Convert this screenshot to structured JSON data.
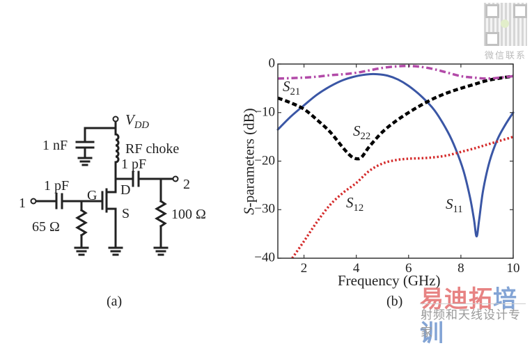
{
  "figure": {
    "panel_a_caption": "(a)",
    "panel_b_caption": "(b)"
  },
  "circuit": {
    "vdd_label": "V",
    "vdd_sub": "DD",
    "bypass_cap": "1 nF",
    "choke": "RF choke",
    "output_cap": "1 pF",
    "input_cap": "1 pF",
    "gate": "G",
    "drain": "D",
    "source": "S",
    "port1": "1",
    "port2": "2",
    "input_res": "65 Ω",
    "output_res": "100 Ω"
  },
  "chart_data": {
    "type": "line",
    "title": "",
    "xlabel": "Frequency (GHz)",
    "ylabel": "S-parameters (dB)",
    "xlim": [
      1,
      10
    ],
    "ylim": [
      -40,
      0
    ],
    "xticks": [
      2,
      4,
      6,
      8,
      10
    ],
    "yticks": [
      0,
      -10,
      -20,
      -30,
      -40
    ],
    "grid": false,
    "series": [
      {
        "name": "S11",
        "label_main": "S",
        "label_sub": "11",
        "color": "#3a56a5",
        "style": "solid",
        "x": [
          1,
          1.5,
          2,
          2.5,
          3,
          3.5,
          4,
          4.5,
          4.8,
          5.2,
          5.6,
          6,
          6.5,
          7,
          7.5,
          7.8,
          8.1,
          8.35,
          8.5,
          8.6,
          8.7,
          8.85,
          9.1,
          9.4,
          9.7,
          10
        ],
        "values": [
          -13.5,
          -10.8,
          -8.5,
          -6.3,
          -4.6,
          -3.3,
          -2.5,
          -2.1,
          -2.1,
          -2.4,
          -3.2,
          -4.5,
          -6.7,
          -9.6,
          -14,
          -17.5,
          -22,
          -27.5,
          -32,
          -35.5,
          -32,
          -26,
          -20,
          -15.5,
          -12.5,
          -10
        ]
      },
      {
        "name": "S22",
        "label_main": "S",
        "label_sub": "22",
        "color": "#000000",
        "style": "dashed",
        "x": [
          1,
          1.5,
          2,
          2.5,
          3,
          3.5,
          3.8,
          4,
          4.2,
          4.5,
          5,
          5.5,
          6,
          6.5,
          7,
          7.5,
          8,
          8.5,
          9,
          9.5,
          10
        ],
        "values": [
          -7,
          -8,
          -9.3,
          -11.5,
          -14,
          -17.3,
          -19,
          -19.5,
          -19.2,
          -17,
          -14,
          -11.8,
          -10,
          -8.4,
          -7,
          -5.9,
          -5,
          -4.2,
          -3.4,
          -2.9,
          -2.5
        ]
      },
      {
        "name": "S21",
        "label_main": "S",
        "label_sub": "21",
        "color": "#b24aa8",
        "style": "dashdot",
        "x": [
          1,
          1.5,
          2,
          2.5,
          3,
          3.5,
          4,
          4.5,
          5,
          5.5,
          6,
          6.5,
          7,
          7.5,
          8,
          8.5,
          9,
          9.5,
          10
        ],
        "values": [
          -3,
          -2.9,
          -2.8,
          -2.6,
          -2.3,
          -2.1,
          -1.8,
          -1.3,
          -0.8,
          -0.5,
          -0.4,
          -0.6,
          -1.1,
          -1.8,
          -2.5,
          -2.8,
          -3,
          -2.8,
          -2.5
        ]
      },
      {
        "name": "S12",
        "label_main": "S",
        "label_sub": "12",
        "color": "#d42b2b",
        "style": "dotted",
        "x": [
          1.55,
          2,
          2.5,
          3,
          3.5,
          4,
          4.5,
          5,
          5.5,
          6,
          6.5,
          7,
          7.5,
          8,
          8.5,
          9,
          9.5,
          10
        ],
        "values": [
          -40,
          -36.5,
          -32.5,
          -29,
          -26.5,
          -24.5,
          -22,
          -20.5,
          -19.8,
          -19.5,
          -19.4,
          -19.2,
          -18.8,
          -18.1,
          -17.4,
          -16.6,
          -15.8,
          -15
        ]
      }
    ]
  },
  "watermark": {
    "qr_caption": "微信联系",
    "brand_part1": "易迪拓",
    "brand_part2": "培训",
    "tagline": "射频和天线设计专家",
    "brand_color1": "#e05a5a",
    "brand_color2": "#5a86c8"
  }
}
